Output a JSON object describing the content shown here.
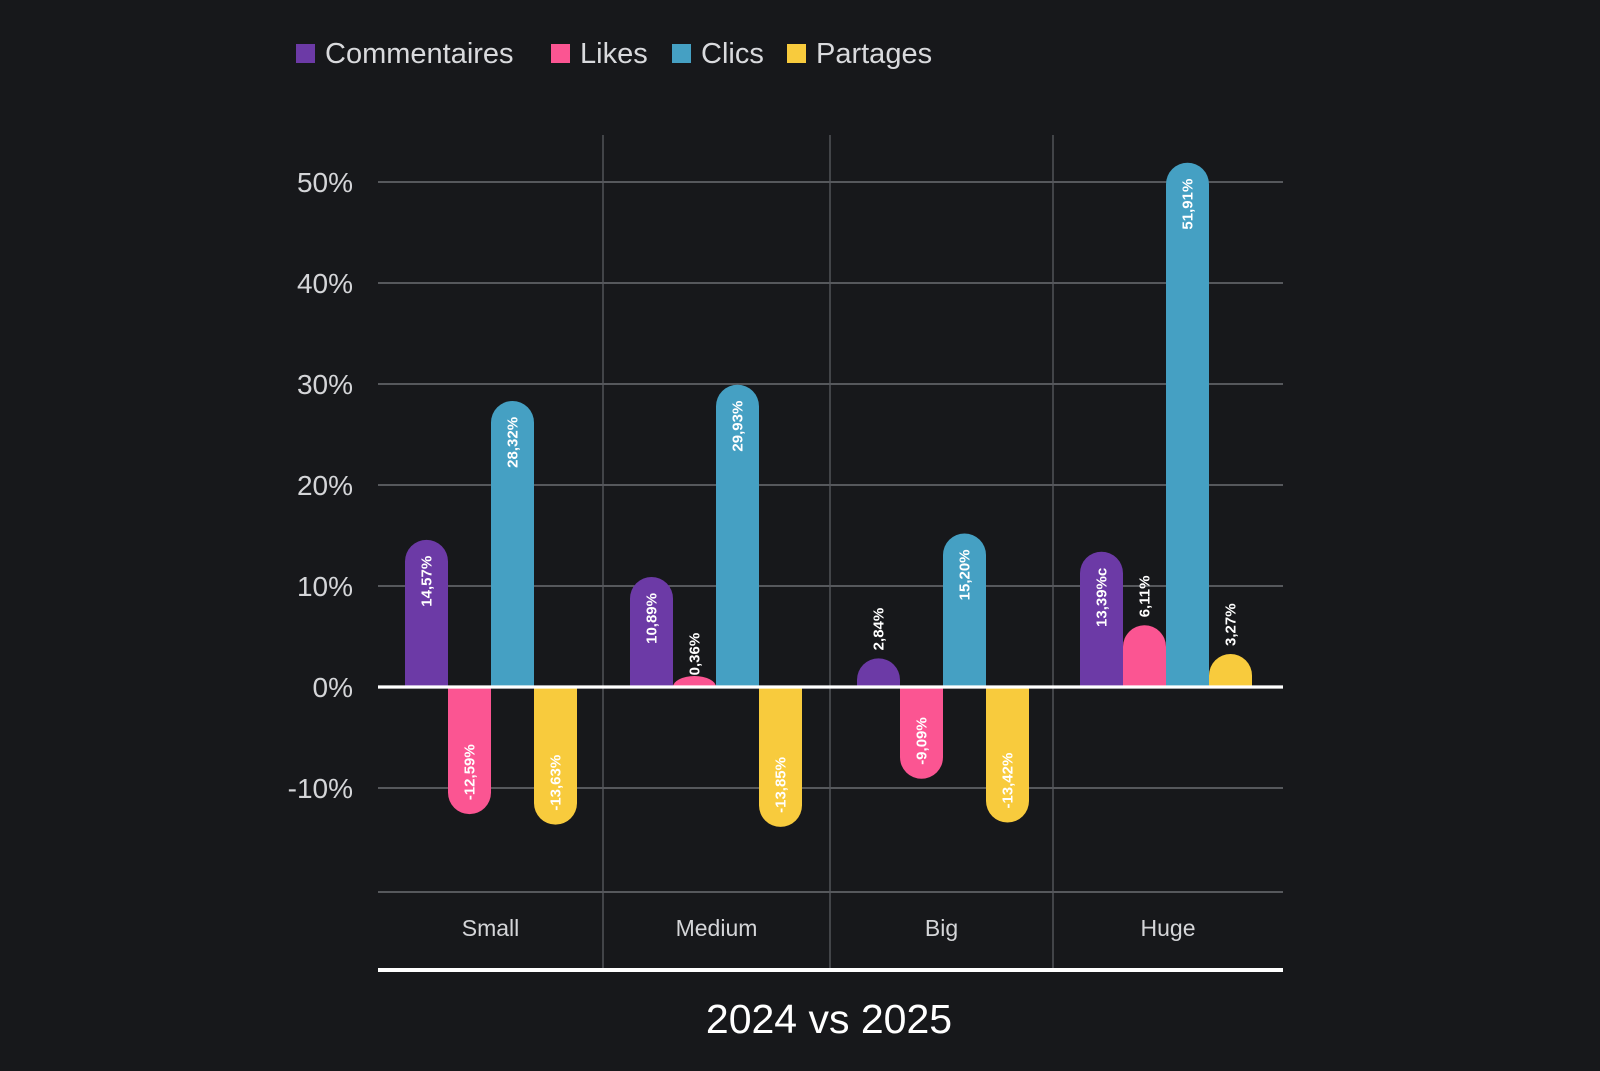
{
  "chart_data": {
    "type": "bar",
    "title": "2024 vs 2025",
    "xlabel": "2024 vs 2025",
    "ylabel": "",
    "categories": [
      "Small",
      "Medium",
      "Big",
      "Huge"
    ],
    "series": [
      {
        "name": "Commentaires",
        "color": "#6c3aa6",
        "values": [
          14.57,
          10.89,
          2.84,
          13.39
        ],
        "labels": [
          "14,57%",
          "10,89%",
          "2,84%",
          "13,39%c"
        ]
      },
      {
        "name": "Likes",
        "color": "#fb5592",
        "values": [
          -12.59,
          0.36,
          -9.09,
          6.11
        ],
        "labels": [
          "-12,59%",
          "0,36%",
          "-9,09%",
          "6,11%"
        ]
      },
      {
        "name": "Clics",
        "color": "#45a0c3",
        "values": [
          28.32,
          29.93,
          15.2,
          51.91
        ],
        "labels": [
          "28,32%",
          "29,93%",
          "15,20%",
          "51,91%"
        ]
      },
      {
        "name": "Partages",
        "color": "#f8cb3d",
        "values": [
          -13.63,
          -13.85,
          -13.42,
          3.27
        ],
        "labels": [
          "-13,63%",
          "-13,85%",
          "-13,42%",
          "3,27%"
        ]
      }
    ],
    "yticks": [
      50,
      40,
      30,
      20,
      10,
      0,
      -10
    ],
    "ytick_labels": [
      "50%",
      "40%",
      "30%",
      "20%",
      "10%",
      "0%",
      "-10%"
    ],
    "ylim": [
      -20,
      55
    ],
    "grid": true,
    "legend_position": "top-left",
    "data_label_position": "inside bar, rotated vertical"
  }
}
